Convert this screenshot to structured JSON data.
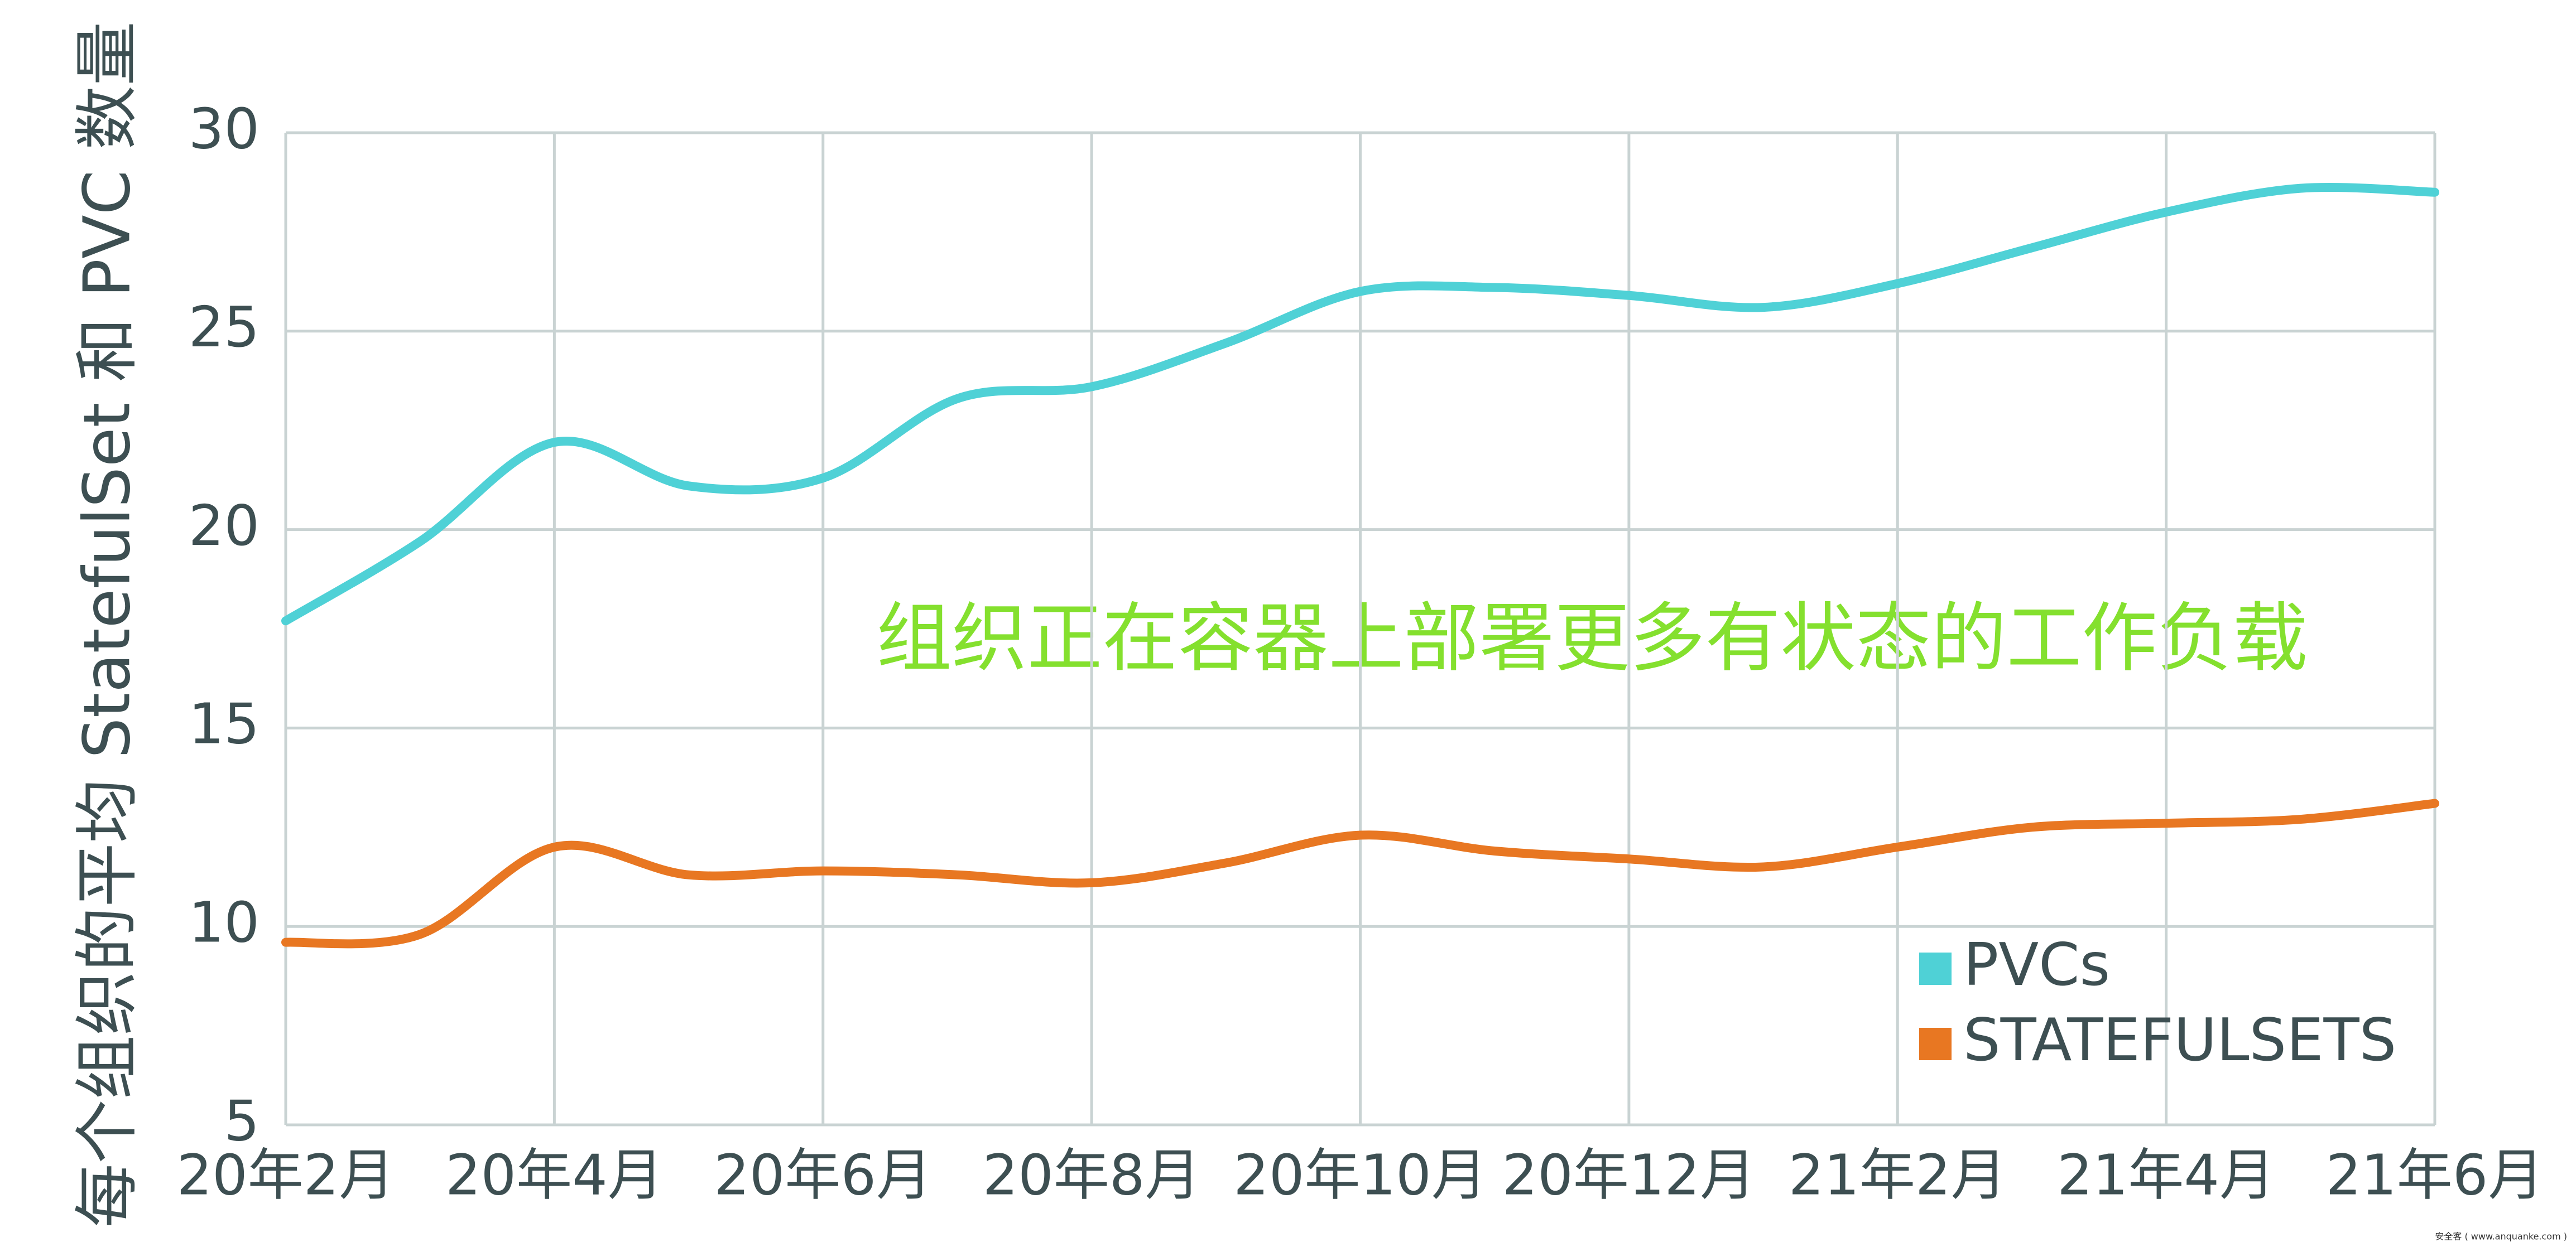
{
  "chart_data": {
    "type": "line",
    "y_label": "每个组织的平均 StatefulSet 和 PVC 数量",
    "annotation": "组织正在容器上部署更多有状态的工作负载",
    "watermark": "安全客 ( www.anquanke.com )",
    "categories": [
      "20年2月",
      null,
      "20年4月",
      null,
      "20年6月",
      null,
      "20年8月",
      null,
      "20年10月",
      null,
      "20年12月",
      null,
      "21年2月",
      null,
      "21年4月",
      null,
      "21年6月"
    ],
    "series": [
      {
        "name": "PVCs",
        "color": "#4fd1d6",
        "values": [
          17.7,
          19.7,
          22.2,
          21.1,
          21.3,
          23.3,
          23.6,
          24.7,
          26.0,
          26.1,
          25.9,
          25.6,
          26.2,
          27.1,
          28.0,
          28.6,
          28.5
        ]
      },
      {
        "name": "STATEFULSETS",
        "color": "#e87722",
        "values": [
          9.6,
          9.8,
          12.0,
          11.3,
          11.4,
          11.3,
          11.1,
          11.6,
          12.3,
          11.9,
          11.7,
          11.5,
          12.0,
          12.5,
          12.6,
          12.7,
          13.1
        ]
      }
    ],
    "ylim": [
      5,
      30
    ],
    "yticks": [
      5,
      10,
      15,
      20,
      25,
      30
    ],
    "grid": true,
    "legend": "lower right"
  }
}
